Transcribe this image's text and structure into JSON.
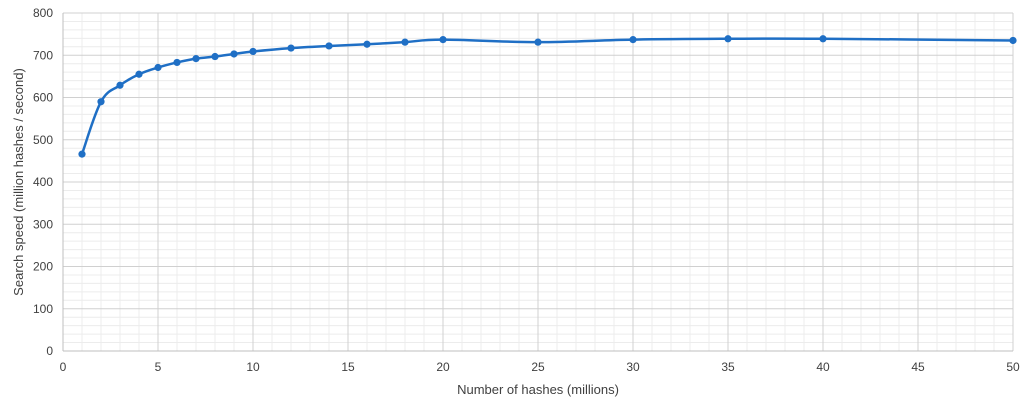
{
  "chart_data": {
    "type": "line",
    "title": "",
    "xlabel": "Number of hashes (millions)",
    "ylabel": "Search speed (million hashes / second)",
    "xlim": [
      0,
      50
    ],
    "ylim": [
      0,
      800
    ],
    "x_ticks": [
      0,
      5,
      10,
      15,
      20,
      25,
      30,
      35,
      40,
      45,
      50
    ],
    "y_ticks": [
      0,
      100,
      200,
      300,
      400,
      500,
      600,
      700,
      800
    ],
    "grid": true,
    "legend": "none",
    "series": [
      {
        "color": "#1f6fc5",
        "x": [
          1,
          2,
          3,
          4,
          5,
          6,
          7,
          8,
          9,
          10,
          12,
          14,
          16,
          18,
          20,
          25,
          30,
          35,
          40,
          50
        ],
        "y": [
          466,
          590,
          629,
          655,
          671,
          683,
          692,
          697,
          703,
          709,
          717,
          722,
          726,
          731,
          737,
          731,
          737,
          739,
          739,
          735
        ]
      }
    ]
  }
}
